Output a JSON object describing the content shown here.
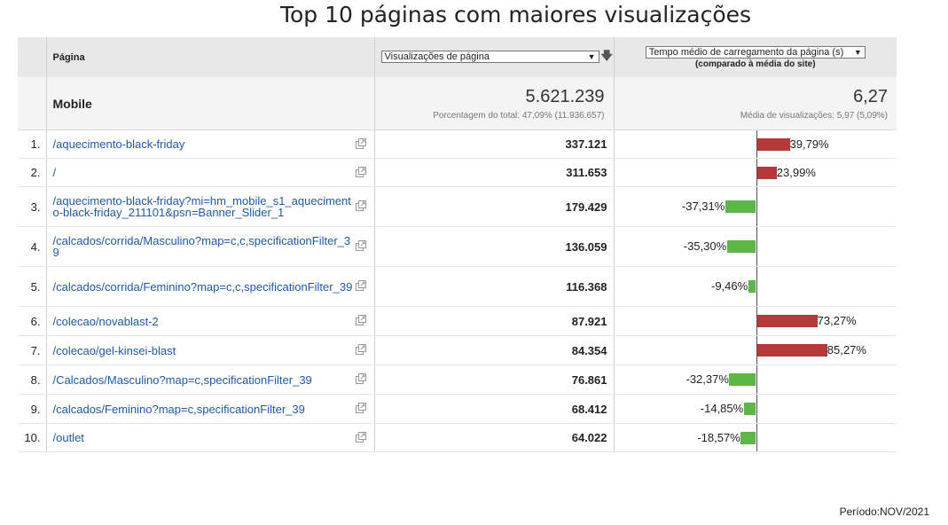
{
  "title": "Top 10 páginas com maiores visualizações",
  "columns": {
    "page": "Página",
    "views_select": "Visualizações de página",
    "load_select": "Tempo médio de carregamento da página (s)",
    "load_sub": "(comparado à média do site)"
  },
  "summary": {
    "label": "Mobile",
    "views_total": "5.621.239",
    "views_note": "Porcentagem do total: 47,09% (11.936.657)",
    "load_total": "6,27",
    "load_note": "Média de visualizações: 5,97 (5,09%)"
  },
  "rows": [
    {
      "idx": "1.",
      "page": "/aquecimento-black-friday",
      "views": "337.121",
      "delta": "39,79%",
      "delta_value": 39.79
    },
    {
      "idx": "2.",
      "page": "/",
      "views": "311.653",
      "delta": "23,99%",
      "delta_value": 23.99
    },
    {
      "idx": "3.",
      "page": "/aquecimento-black-friday?mi=hm_mobile_s1_aquecimento-black-friday_211101&psn=Banner_Slider_1",
      "views": "179.429",
      "delta": "-37,31%",
      "delta_value": -37.31
    },
    {
      "idx": "4.",
      "page": "/calcados/corrida/Masculino?map=c,c,specificationFilter_39",
      "views": "136.059",
      "delta": "-35,30%",
      "delta_value": -35.3
    },
    {
      "idx": "5.",
      "page": "/calcados/corrida/Feminino?map=c,c,specificationFilter_39",
      "views": "116.368",
      "delta": "-9,46%",
      "delta_value": -9.46
    },
    {
      "idx": "6.",
      "page": "/colecao/novablast-2",
      "views": "87.921",
      "delta": "73,27%",
      "delta_value": 73.27
    },
    {
      "idx": "7.",
      "page": "/colecao/gel-kinsei-blast",
      "views": "84.354",
      "delta": "85,27%",
      "delta_value": 85.27
    },
    {
      "idx": "8.",
      "page": "/Calcados/Masculino?map=c,specificationFilter_39",
      "views": "76.861",
      "delta": "-32,37%",
      "delta_value": -32.37
    },
    {
      "idx": "9.",
      "page": "/calcados/Feminino?map=c,specificationFilter_39",
      "views": "68.412",
      "delta": "-14,85%",
      "delta_value": -14.85
    },
    {
      "idx": "10.",
      "page": "/outlet",
      "views": "64.022",
      "delta": "-18,57%",
      "delta_value": -18.57
    }
  ],
  "colors": {
    "positive": "#b43a3a",
    "negative": "#5cb648",
    "link": "#1f5aa6"
  },
  "icons": {
    "sort": "sort-down-arrow-icon",
    "external": "open-in-new-window-icon"
  },
  "period": "Período:NOV/2021"
}
